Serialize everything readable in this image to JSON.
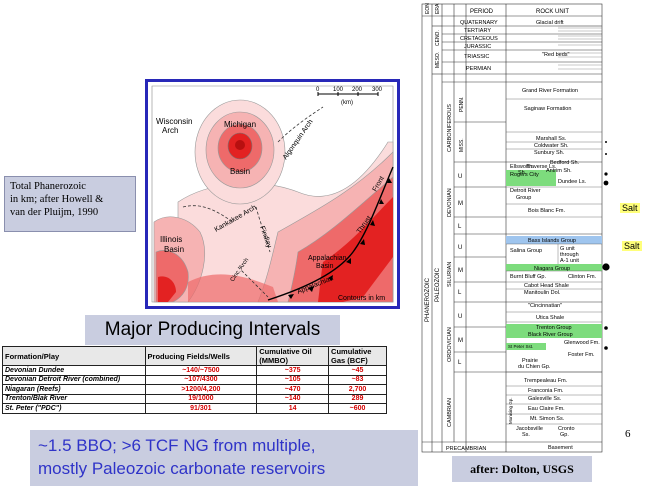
{
  "caption": {
    "lines": [
      "Total Phanerozoic",
      "in km; after Howell &",
      "van der Pluijm, 1990"
    ]
  },
  "map": {
    "scale_labels": [
      "0",
      "100",
      "200",
      "300"
    ],
    "scale_unit": "(km)",
    "labels": {
      "wisconsin": "Wisconsin",
      "wisconsin2": "Arch",
      "michigan": "Michigan",
      "basin_mi": "Basin",
      "algonquin": "Algonquin Arch",
      "kankakee": "Kankakee Arch",
      "findlay": "Findlay",
      "illinois": "Illinois",
      "basin_il": "Basin",
      "appalachian": "Appalachian",
      "basin_ap": "Basin",
      "cinc": "Cinc. Arch",
      "app_thrust": "Appalachian",
      "thrust": "Thrust",
      "front": "Front",
      "contours": "Contours in km"
    },
    "colors": {
      "deep": "#e32222",
      "mid": "#ee6a6a",
      "light": "#f6b3b3",
      "pale": "#fbdcdc"
    }
  },
  "intervals_title": "Major Producing Intervals",
  "table": {
    "headers": [
      "Formation/Play",
      "Producing Fields/Wells",
      "Cumulative Oil (MMBO)",
      "Cumulative Gas (BCF)"
    ],
    "rows": [
      [
        "Devonian Dundee",
        "~140/~7500",
        "~375",
        "~45"
      ],
      [
        "Devonian Detroit River (combined)",
        "~107/4300",
        "~105",
        "~83"
      ],
      [
        "Niagaran (Reefs)",
        ">1200/4,200",
        "~470",
        "2,700"
      ],
      [
        "Trenton/Blak River",
        "19/1000",
        "~140",
        "289"
      ],
      [
        "St. Peter (\"PDC\")",
        "91/301",
        "14",
        "~600"
      ]
    ]
  },
  "summary": {
    "lines": [
      "~1.5 BBO; >6 TCF NG from multiple,",
      "mostly Paleozoic carbonate reservoirs"
    ]
  },
  "source": "after: Dolton, USGS",
  "page_number": "6",
  "strat": {
    "headers": {
      "eon": "EON",
      "era": "ERA",
      "period": "PERIOD",
      "rock_unit": "ROCK UNIT"
    },
    "eras": {
      "ceno": "CENO.",
      "meso": "MESO.",
      "paleozoic": "PALEOZOIC",
      "phanerozoic": "PHANEROZOIC"
    },
    "periods": {
      "quaternary": "QUATERNARY",
      "tertiary": "TERTIARY",
      "cretaceous": "CRETACEOUS",
      "jurassic": "JURASSIC",
      "triassic": "TRIASSIC",
      "permian": "PERMIAN",
      "carboniferous": "CARBONIFEROUS",
      "penn": "PENN.",
      "miss": "MISS.",
      "devonian": "DEVONIAN",
      "silurian": "SILURIAN",
      "ordovician": "ORDOVICIAN",
      "cambrian": "CAMBRIAN",
      "precambrian": "PRECAMBRIAN"
    },
    "epochs": [
      "U",
      "M",
      "L",
      "U",
      "M",
      "L",
      "U",
      "M",
      "L"
    ],
    "units": {
      "glacial": "Glacial drift",
      "redbeds": "\"Red beds\"",
      "grand_river": "Grand River Formation",
      "saginaw": "Saginaw Formation",
      "marshall": "Marshall Ss.",
      "coldwater": "Coldwater Sh.",
      "sunbury": "Sunbury Sh.",
      "bedford": "Bedford Sh.",
      "antrim": "Antrim Sh.",
      "ellsworth": "Ellsworth",
      "ellsworth2": "Sh.",
      "traverse": "Traverse Ls.",
      "rogers": "Rogers City",
      "dundee": "Dundee Ls.",
      "detroit": "Detroit River",
      "detroit2": "Group",
      "bois": "Bois Blanc Fm.",
      "bass": "Bass Islands Group",
      "salina": "Salina Group",
      "g_unit": "G unit",
      "through": "through",
      "a1": "A-1 unit",
      "niagara": "Niagara Group",
      "burnt": "Burnt Bluff Gp.",
      "clinton": "Clinton Fm.",
      "cabot": "Cabot Head Shale",
      "manitoulin": "Manitoulin Dol.",
      "cincinnatian": "\"Cincinnatian\"",
      "utica": "Utica Shale",
      "trenton": "Trenton Group",
      "black_river": "Black River Group",
      "glenwood": "Glenwood Fm.",
      "st_peter": "St Peter Sst.",
      "foster": "Foster Fm.",
      "prairie": "Prairie",
      "prairie2": "du Chien Gp.",
      "trempealeau": "Trempealeau Fm.",
      "franconia": "Franconia Fm.",
      "galesville": "Galesville Ss.",
      "eau_claire": "Eau Claire Fm.",
      "mt_simon": "Mt. Simon Ss.",
      "jacobsville": "Jacobsville",
      "jacobsville2": "Ss.",
      "cronto": "Cronto",
      "cronto2": "Gp.",
      "munising": "Munising Gp.",
      "basement": "Basement"
    },
    "salt": [
      "Salt",
      "Salt"
    ],
    "highlight": "#7ddc7d",
    "blue": "#9fc5ee"
  }
}
